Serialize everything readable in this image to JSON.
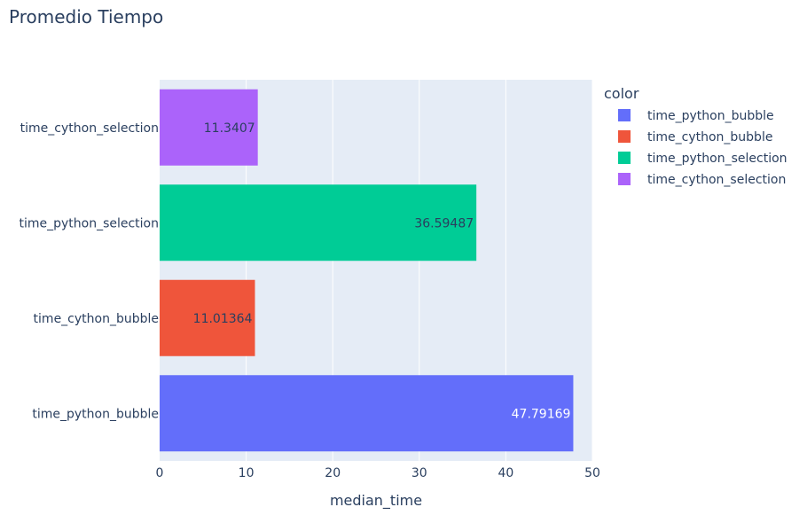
{
  "chart_data": {
    "type": "bar",
    "orientation": "horizontal",
    "title": "Promedio Tiempo",
    "xlabel": "median_time",
    "ylabel": "",
    "xlim": [
      0,
      50
    ],
    "x_ticks": [
      0,
      10,
      20,
      30,
      40,
      50
    ],
    "grid": true,
    "legend_title": "color",
    "legend_position": "top-right",
    "categories": [
      "time_python_bubble",
      "time_cython_bubble",
      "time_python_selection",
      "time_cython_selection"
    ],
    "series": [
      {
        "name": "time_python_bubble",
        "category": "time_python_bubble",
        "value": 47.79169,
        "label": "47.79169",
        "color": "#636efa",
        "label_color": "#ffffff"
      },
      {
        "name": "time_cython_bubble",
        "category": "time_cython_bubble",
        "value": 11.01364,
        "label": "11.01364",
        "color": "#ef553b",
        "label_color": "#2a3f5f"
      },
      {
        "name": "time_python_selection",
        "category": "time_python_selection",
        "value": 36.59487,
        "label": "36.59487",
        "color": "#00cc96",
        "label_color": "#2a3f5f"
      },
      {
        "name": "time_cython_selection",
        "category": "time_cython_selection",
        "value": 11.3407,
        "label": "11.3407",
        "color": "#ab63fa",
        "label_color": "#2a3f5f"
      }
    ],
    "colors": {
      "plot_bg": "#e5ecf6",
      "grid": "#ffffff",
      "text": "#2a3f5f",
      "axis_text": "#2a3f5f"
    }
  }
}
